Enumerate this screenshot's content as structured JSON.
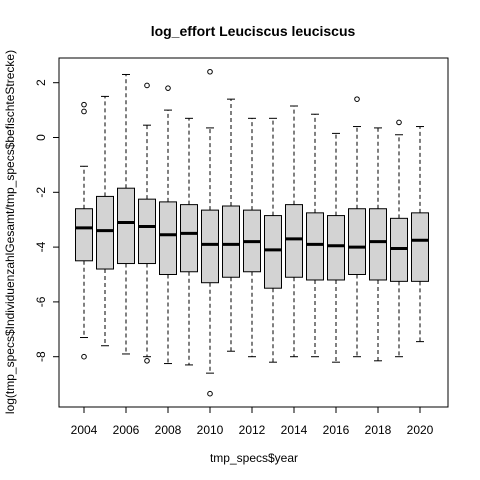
{
  "chart_data": {
    "type": "boxplot",
    "title": "log_effort Leuciscus leuciscus",
    "xlabel": "tmp_specs$year",
    "ylabel": "log(tmp_specs$IndividuenzahlGesamt/tmp_specs$befischteStrecke)",
    "x_tick_labels": [
      "2004",
      "2006",
      "2008",
      "2010",
      "2012",
      "2014",
      "2016",
      "2018",
      "2020"
    ],
    "y_ticks": [
      -8,
      -6,
      -4,
      -2,
      0,
      2
    ],
    "ylim": [
      -9.6,
      2.9
    ],
    "box_fill": "#d3d3d3",
    "boxes": [
      {
        "year": 2004,
        "whisker_low": -7.3,
        "q1": -4.5,
        "median": -3.3,
        "q3": -2.6,
        "whisker_high": -1.05,
        "outliers": [
          1.2,
          0.95,
          -8.0
        ]
      },
      {
        "year": 2005,
        "whisker_low": -7.6,
        "q1": -4.8,
        "median": -3.4,
        "q3": -2.15,
        "whisker_high": 1.5,
        "outliers": []
      },
      {
        "year": 2006,
        "whisker_low": -7.9,
        "q1": -4.6,
        "median": -3.1,
        "q3": -1.85,
        "whisker_high": 2.3,
        "outliers": []
      },
      {
        "year": 2007,
        "whisker_low": -8.0,
        "q1": -4.6,
        "median": -3.25,
        "q3": -2.25,
        "whisker_high": 0.45,
        "outliers": [
          1.9,
          -8.15
        ]
      },
      {
        "year": 2008,
        "whisker_low": -8.25,
        "q1": -5.0,
        "median": -3.55,
        "q3": -2.35,
        "whisker_high": 1.0,
        "outliers": [
          1.8
        ]
      },
      {
        "year": 2009,
        "whisker_low": -8.3,
        "q1": -4.9,
        "median": -3.5,
        "q3": -2.45,
        "whisker_high": 0.7,
        "outliers": []
      },
      {
        "year": 2010,
        "whisker_low": -8.6,
        "q1": -5.3,
        "median": -3.9,
        "q3": -2.65,
        "whisker_high": 0.35,
        "outliers": [
          2.4,
          -9.35
        ]
      },
      {
        "year": 2011,
        "whisker_low": -7.8,
        "q1": -5.1,
        "median": -3.9,
        "q3": -2.5,
        "whisker_high": 1.4,
        "outliers": []
      },
      {
        "year": 2012,
        "whisker_low": -8.0,
        "q1": -4.9,
        "median": -3.8,
        "q3": -2.65,
        "whisker_high": 0.7,
        "outliers": []
      },
      {
        "year": 2013,
        "whisker_low": -8.2,
        "q1": -5.5,
        "median": -4.1,
        "q3": -2.85,
        "whisker_high": 0.7,
        "outliers": []
      },
      {
        "year": 2014,
        "whisker_low": -8.0,
        "q1": -5.1,
        "median": -3.7,
        "q3": -2.45,
        "whisker_high": 1.15,
        "outliers": []
      },
      {
        "year": 2015,
        "whisker_low": -8.0,
        "q1": -5.2,
        "median": -3.9,
        "q3": -2.75,
        "whisker_high": 0.85,
        "outliers": []
      },
      {
        "year": 2016,
        "whisker_low": -8.2,
        "q1": -5.2,
        "median": -3.95,
        "q3": -2.85,
        "whisker_high": 0.15,
        "outliers": []
      },
      {
        "year": 2017,
        "whisker_low": -8.0,
        "q1": -5.0,
        "median": -4.0,
        "q3": -2.6,
        "whisker_high": 0.4,
        "outliers": [
          1.4
        ]
      },
      {
        "year": 2018,
        "whisker_low": -8.15,
        "q1": -5.2,
        "median": -3.8,
        "q3": -2.6,
        "whisker_high": 0.35,
        "outliers": []
      },
      {
        "year": 2019,
        "whisker_low": -8.0,
        "q1": -5.25,
        "median": -4.05,
        "q3": -2.95,
        "whisker_high": 0.1,
        "outliers": [
          0.55
        ]
      },
      {
        "year": 2020,
        "whisker_low": -7.45,
        "q1": -5.25,
        "median": -3.75,
        "q3": -2.75,
        "whisker_high": 0.4,
        "outliers": []
      }
    ]
  }
}
